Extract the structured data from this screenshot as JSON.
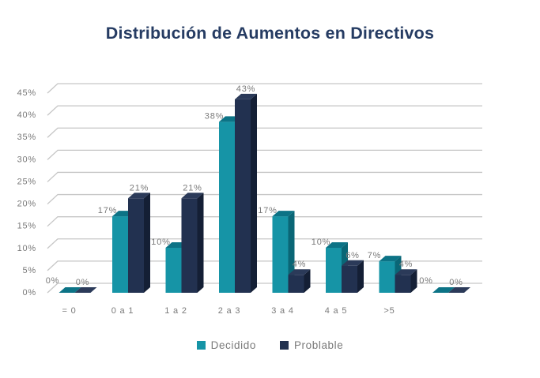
{
  "chart_data": {
    "type": "bar",
    "variant": "3d-clustered-column",
    "title": "Distribución de Aumentos en Directivos",
    "categories": [
      "= 0",
      "0 a 1",
      "1 a 2",
      "2 a 3",
      "3 a 4",
      "4 a 5",
      ">5",
      ""
    ],
    "series": [
      {
        "name": "Decidido",
        "colors": {
          "front": "#1694A6",
          "top": "#0C7386",
          "side": "#0A6676"
        },
        "values": [
          0,
          17,
          10,
          38,
          17,
          10,
          7,
          0
        ]
      },
      {
        "name": "Problable",
        "colors": {
          "front": "#223150",
          "top": "#2B3A59",
          "side": "#141F35"
        },
        "values": [
          0,
          21,
          21,
          43,
          4,
          6,
          4,
          0
        ]
      }
    ],
    "value_suffix": "%",
    "data_labels": true,
    "ylim": [
      0,
      45
    ],
    "ytick_step": 5,
    "yticks": [
      "0%",
      "5%",
      "10%",
      "15%",
      "20%",
      "25%",
      "30%",
      "35%",
      "40%",
      "45%"
    ],
    "grid": true,
    "legend_position": "bottom",
    "text_color": "#7A7A7A",
    "grid_color": "#C6C6C6",
    "title_color": "#263C63",
    "background_color": "#FFFFFF"
  }
}
